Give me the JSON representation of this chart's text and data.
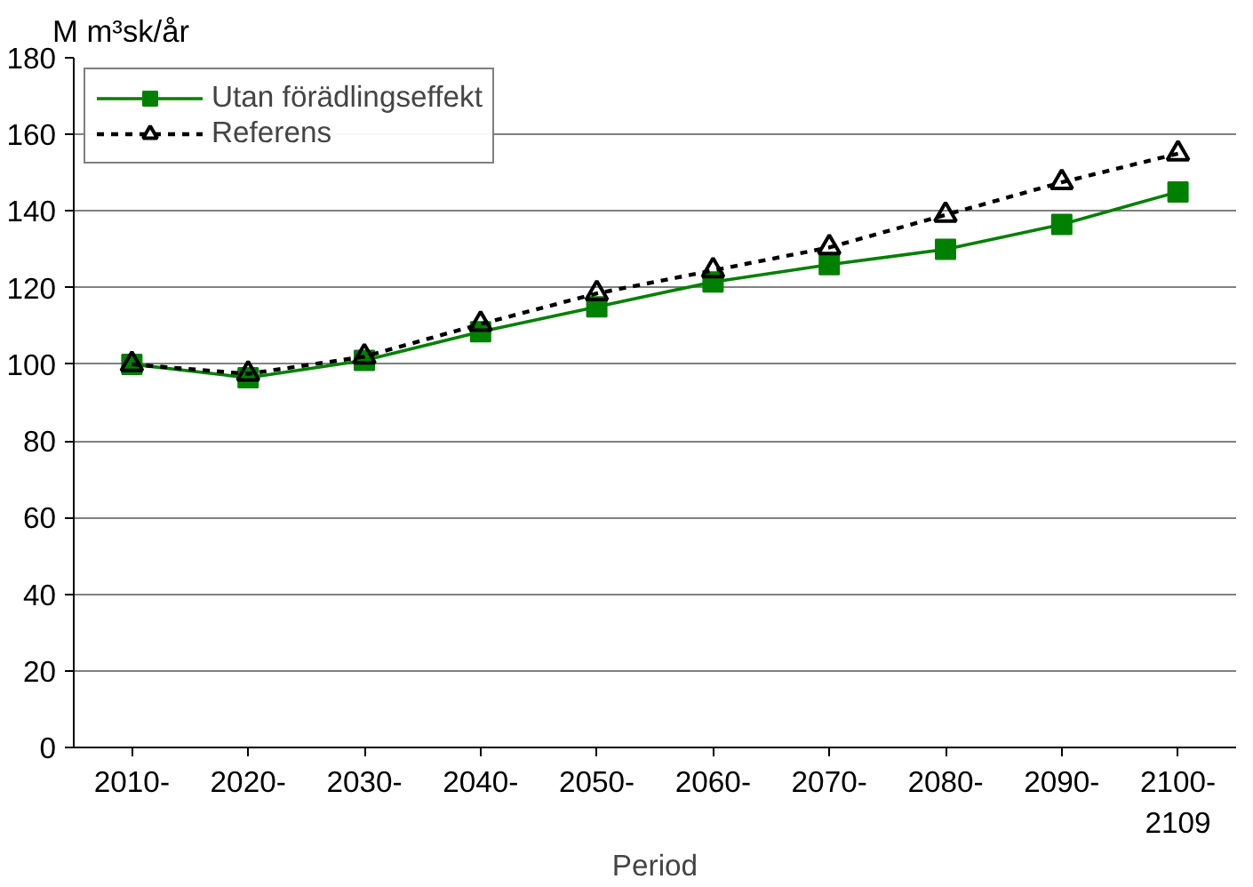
{
  "chart_data": {
    "type": "line",
    "ylabel": "M m³sk/år",
    "xlabel": "Period",
    "categories": [
      "2010-",
      "2020-",
      "2030-",
      "2040-",
      "2050-",
      "2060-",
      "2070-",
      "2080-",
      "2090-",
      "2100-\n2109"
    ],
    "series": [
      {
        "name": "Utan förädlingseffekt",
        "color": "#008000",
        "marker": "square",
        "line_style": "solid",
        "values": [
          100,
          96.5,
          101,
          108.5,
          115,
          121.5,
          126,
          130,
          136.5,
          145
        ]
      },
      {
        "name": "Referens",
        "color": "#000000",
        "marker": "triangle",
        "line_style": "dashed",
        "values": [
          100,
          97.5,
          102,
          110.5,
          118.5,
          124.5,
          130.5,
          139,
          147.5,
          155
        ]
      }
    ],
    "ylim": [
      0,
      180
    ],
    "yticks": [
      0,
      20,
      40,
      60,
      80,
      100,
      120,
      140,
      160,
      180
    ],
    "grid": "y",
    "legend": "top left"
  }
}
